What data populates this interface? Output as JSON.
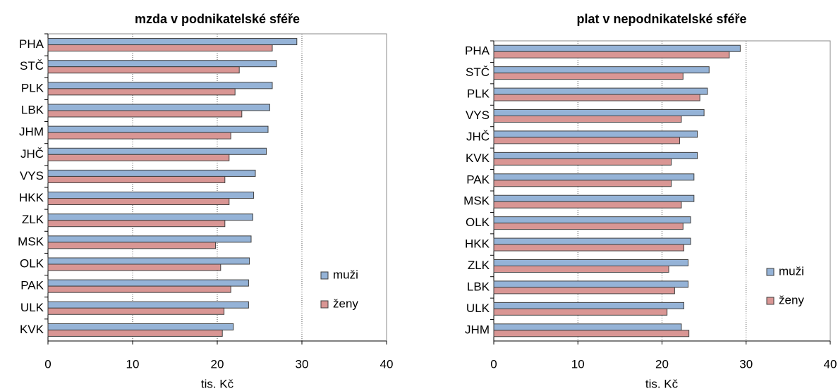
{
  "chart_data": [
    {
      "type": "bar",
      "orientation": "horizontal",
      "title": "mzda v podnikatelské  sféře",
      "xlabel": "tis. Kč",
      "categories": [
        "PHA",
        "STČ",
        "PLK",
        "LBK",
        "JHM",
        "JHČ",
        "VYS",
        "HKK",
        "ZLK",
        "MSK",
        "OLK",
        "PAK",
        "ULK",
        "KVK"
      ],
      "series": [
        {
          "name": "muži",
          "color": "#95b3d7",
          "values": [
            29.4,
            27.0,
            26.5,
            26.2,
            26.0,
            25.8,
            24.5,
            24.3,
            24.2,
            24.0,
            23.8,
            23.7,
            23.7,
            21.9
          ]
        },
        {
          "name": "ženy",
          "color": "#d99694",
          "values": [
            26.5,
            22.6,
            22.1,
            22.9,
            21.6,
            21.4,
            20.9,
            21.4,
            20.9,
            19.8,
            20.4,
            21.6,
            20.8,
            20.6
          ]
        }
      ],
      "xlim": [
        0,
        40
      ],
      "xticks": [
        0,
        10,
        20,
        30,
        40
      ],
      "grid": true,
      "legend": "right"
    },
    {
      "type": "bar",
      "orientation": "horizontal",
      "title": "plat v  nepodnikatelské  sféře",
      "xlabel": "tis. Kč",
      "categories": [
        "PHA",
        "STČ",
        "PLK",
        "VYS",
        "JHČ",
        "KVK",
        "PAK",
        "MSK",
        "OLK",
        "HKK",
        "ZLK",
        "LBK",
        "ULK",
        "JHM"
      ],
      "series": [
        {
          "name": "muži",
          "color": "#95b3d7",
          "values": [
            29.3,
            25.6,
            25.4,
            25.0,
            24.2,
            24.2,
            23.8,
            23.8,
            23.4,
            23.4,
            23.1,
            23.1,
            22.6,
            22.3
          ]
        },
        {
          "name": "ženy",
          "color": "#d99694",
          "values": [
            28.0,
            22.5,
            24.5,
            22.3,
            22.1,
            21.1,
            21.1,
            22.3,
            22.5,
            22.6,
            20.8,
            21.5,
            20.6,
            23.2
          ]
        }
      ],
      "xlim": [
        0,
        40
      ],
      "xticks": [
        0,
        10,
        20,
        30,
        40
      ],
      "grid": true,
      "legend": "right"
    }
  ]
}
